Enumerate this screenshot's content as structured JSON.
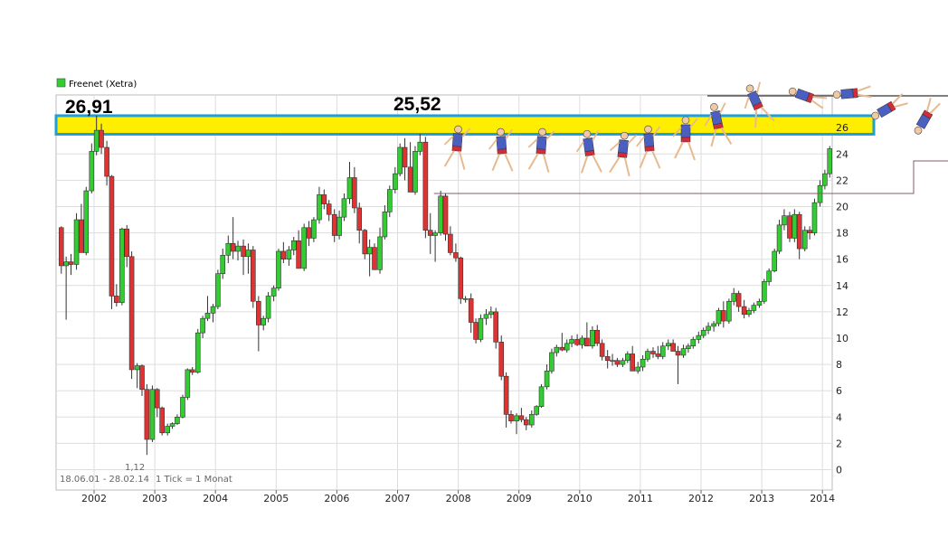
{
  "legend": {
    "label": "Freenet (Xetra)",
    "color": "#33cc33"
  },
  "footer": {
    "range": "18.06.01 - 28.02.14",
    "tick": "1 Tick = 1 Monat"
  },
  "annotations": {
    "high_2002": "26,91",
    "high_2007": "25,52",
    "low_2002": "1,12"
  },
  "colors": {
    "up": "#33cc33",
    "down": "#dd3333",
    "band_fill": "#ffee00",
    "band_border": "#1e9fd8",
    "grid": "#dddddd",
    "support_line": "#8a5a6a"
  },
  "chart_data": {
    "type": "candlestick",
    "title": "",
    "xlabel": "",
    "ylabel": "",
    "ylim": [
      -1,
      28
    ],
    "y_ticks": [
      0,
      2,
      4,
      6,
      8,
      10,
      12,
      14,
      16,
      18,
      20,
      22,
      24,
      26
    ],
    "x_ticks": [
      "2002",
      "2003",
      "2004",
      "2005",
      "2006",
      "2007",
      "2008",
      "2009",
      "2010",
      "2011",
      "2012",
      "2013",
      "2014"
    ],
    "series": [
      {
        "values": [
          [
            2001.46,
            18.4,
            18.5,
            14.9,
            15.5
          ],
          [
            2001.54,
            15.5,
            16.2,
            11.4,
            15.8
          ],
          [
            2001.62,
            15.8,
            16.4,
            14.8,
            15.6
          ],
          [
            2001.71,
            15.6,
            19.5,
            15.2,
            19.0
          ],
          [
            2001.79,
            19.0,
            20.2,
            17.1,
            16.5
          ],
          [
            2001.87,
            16.5,
            21.5,
            16.3,
            21.2
          ],
          [
            2001.96,
            21.2,
            24.8,
            21.0,
            24.2
          ],
          [
            2002.04,
            24.2,
            26.91,
            23.9,
            25.8
          ],
          [
            2002.12,
            25.8,
            26.3,
            24.0,
            24.5
          ],
          [
            2002.21,
            24.5,
            25.0,
            21.6,
            22.3
          ],
          [
            2002.29,
            22.3,
            22.4,
            12.2,
            13.2
          ],
          [
            2002.37,
            13.2,
            14.1,
            12.4,
            12.7
          ],
          [
            2002.46,
            12.7,
            18.4,
            12.5,
            18.3
          ],
          [
            2002.54,
            18.3,
            18.6,
            15.4,
            16.2
          ],
          [
            2002.62,
            16.2,
            16.6,
            6.9,
            7.6
          ],
          [
            2002.71,
            7.6,
            8.1,
            6.2,
            7.9
          ],
          [
            2002.79,
            7.9,
            8.0,
            5.6,
            6.1
          ],
          [
            2002.87,
            6.1,
            6.5,
            1.12,
            2.3
          ],
          [
            2002.96,
            2.3,
            6.4,
            2.1,
            6.1
          ],
          [
            2003.04,
            6.1,
            6.2,
            4.0,
            4.7
          ],
          [
            2003.12,
            4.7,
            4.8,
            2.6,
            2.8
          ],
          [
            2003.21,
            2.8,
            3.5,
            2.6,
            3.3
          ],
          [
            2003.29,
            3.3,
            3.6,
            3.1,
            3.5
          ],
          [
            2003.37,
            3.5,
            4.2,
            3.4,
            4.0
          ],
          [
            2003.46,
            4.0,
            5.7,
            3.9,
            5.5
          ],
          [
            2003.54,
            5.5,
            7.7,
            5.3,
            7.6
          ],
          [
            2003.62,
            7.6,
            7.8,
            7.2,
            7.4
          ],
          [
            2003.71,
            7.4,
            10.7,
            7.3,
            10.4
          ],
          [
            2003.79,
            10.4,
            11.7,
            10.0,
            11.5
          ],
          [
            2003.87,
            11.5,
            13.2,
            11.3,
            11.9
          ],
          [
            2003.96,
            11.9,
            12.6,
            11.2,
            12.4
          ],
          [
            2004.04,
            12.4,
            15.2,
            12.2,
            14.9
          ],
          [
            2004.12,
            14.9,
            16.8,
            14.5,
            16.3
          ],
          [
            2004.21,
            16.3,
            17.8,
            15.7,
            17.2
          ],
          [
            2004.29,
            17.2,
            19.2,
            16.0,
            16.6
          ],
          [
            2004.37,
            16.6,
            17.4,
            15.9,
            17.0
          ],
          [
            2004.46,
            17.0,
            17.5,
            14.8,
            16.2
          ],
          [
            2004.54,
            16.2,
            17.2,
            14.9,
            16.7
          ],
          [
            2004.62,
            16.7,
            17.0,
            12.3,
            12.8
          ],
          [
            2004.71,
            12.8,
            13.2,
            9.0,
            11.0
          ],
          [
            2004.79,
            11.0,
            11.7,
            10.6,
            11.5
          ],
          [
            2004.87,
            11.5,
            13.5,
            11.2,
            13.2
          ],
          [
            2004.96,
            13.2,
            14.0,
            12.8,
            13.8
          ],
          [
            2005.04,
            13.8,
            16.8,
            13.6,
            16.6
          ],
          [
            2005.12,
            16.6,
            17.3,
            15.7,
            16.0
          ],
          [
            2005.21,
            16.0,
            17.0,
            15.5,
            16.7
          ],
          [
            2005.29,
            16.7,
            17.7,
            16.3,
            17.4
          ],
          [
            2005.37,
            17.4,
            18.2,
            15.7,
            15.3
          ],
          [
            2005.46,
            15.3,
            18.7,
            15.1,
            18.4
          ],
          [
            2005.54,
            18.4,
            18.9,
            17.0,
            17.6
          ],
          [
            2005.62,
            17.6,
            19.2,
            17.3,
            19.0
          ],
          [
            2005.71,
            19.0,
            21.5,
            18.7,
            20.9
          ],
          [
            2005.79,
            20.9,
            21.3,
            19.8,
            20.2
          ],
          [
            2005.87,
            20.2,
            20.5,
            18.9,
            19.4
          ],
          [
            2005.96,
            19.4,
            19.8,
            17.3,
            17.8
          ],
          [
            2006.04,
            17.8,
            19.7,
            17.5,
            19.2
          ],
          [
            2006.12,
            19.2,
            21.0,
            18.9,
            20.6
          ],
          [
            2006.21,
            20.6,
            23.4,
            20.2,
            22.2
          ],
          [
            2006.29,
            22.2,
            23.0,
            19.5,
            19.9
          ],
          [
            2006.37,
            19.9,
            20.3,
            17.2,
            18.2
          ],
          [
            2006.46,
            18.2,
            18.3,
            16.0,
            16.4
          ],
          [
            2006.54,
            16.4,
            17.5,
            14.7,
            16.9
          ],
          [
            2006.62,
            16.9,
            17.2,
            15.3,
            15.2
          ],
          [
            2006.71,
            15.2,
            18.4,
            14.9,
            17.7
          ],
          [
            2006.79,
            17.7,
            20.1,
            17.5,
            19.6
          ],
          [
            2006.87,
            19.6,
            21.6,
            19.2,
            21.3
          ],
          [
            2006.96,
            21.3,
            23.0,
            21.0,
            22.5
          ],
          [
            2007.04,
            22.5,
            24.8,
            22.3,
            24.5
          ],
          [
            2007.12,
            24.5,
            25.2,
            22.0,
            23.0
          ],
          [
            2007.21,
            23.0,
            24.9,
            21.8,
            21.1
          ],
          [
            2007.29,
            21.1,
            24.6,
            20.9,
            24.2
          ],
          [
            2007.37,
            24.2,
            25.52,
            23.9,
            24.9
          ],
          [
            2007.46,
            24.9,
            25.3,
            17.6,
            18.2
          ],
          [
            2007.54,
            18.2,
            19.5,
            16.4,
            17.8
          ],
          [
            2007.62,
            17.8,
            18.2,
            15.8,
            18.0
          ],
          [
            2007.71,
            18.0,
            21.2,
            17.8,
            20.8
          ],
          [
            2007.79,
            20.8,
            21.0,
            17.4,
            17.9
          ],
          [
            2007.87,
            17.9,
            18.5,
            16.3,
            16.5
          ],
          [
            2007.96,
            16.5,
            17.2,
            15.8,
            16.1
          ],
          [
            2008.04,
            16.1,
            16.2,
            12.6,
            13.0
          ],
          [
            2008.12,
            13.0,
            13.2,
            12.7,
            13.0
          ],
          [
            2008.21,
            13.0,
            13.4,
            10.4,
            11.2
          ],
          [
            2008.29,
            11.2,
            11.5,
            9.6,
            9.9
          ],
          [
            2008.37,
            9.9,
            11.8,
            9.7,
            11.5
          ],
          [
            2008.46,
            11.5,
            12.2,
            11.0,
            11.8
          ],
          [
            2008.54,
            11.8,
            12.4,
            11.5,
            12.0
          ],
          [
            2008.62,
            12.0,
            12.3,
            9.2,
            9.7
          ],
          [
            2008.71,
            9.7,
            10.2,
            6.8,
            7.1
          ],
          [
            2008.79,
            7.1,
            7.4,
            3.2,
            4.2
          ],
          [
            2008.87,
            4.2,
            4.5,
            3.5,
            3.7
          ],
          [
            2008.96,
            3.7,
            4.3,
            2.7,
            4.1
          ],
          [
            2009.04,
            4.1,
            4.7,
            3.6,
            3.8
          ],
          [
            2009.12,
            3.8,
            4.0,
            3.0,
            3.4
          ],
          [
            2009.21,
            3.4,
            4.5,
            3.2,
            4.2
          ],
          [
            2009.29,
            4.2,
            4.9,
            4.1,
            4.8
          ],
          [
            2009.37,
            4.8,
            6.5,
            4.7,
            6.3
          ],
          [
            2009.46,
            6.3,
            8.0,
            6.1,
            7.5
          ],
          [
            2009.54,
            7.5,
            9.2,
            7.3,
            8.9
          ],
          [
            2009.62,
            8.9,
            9.5,
            8.6,
            9.3
          ],
          [
            2009.71,
            9.3,
            10.4,
            9.0,
            9.1
          ],
          [
            2009.79,
            9.1,
            9.9,
            8.9,
            9.6
          ],
          [
            2009.87,
            9.6,
            10.2,
            9.3,
            9.9
          ],
          [
            2009.96,
            9.9,
            10.3,
            9.4,
            9.5
          ],
          [
            2010.04,
            9.5,
            10.2,
            9.2,
            10.0
          ],
          [
            2010.12,
            10.0,
            11.2,
            9.8,
            9.4
          ],
          [
            2010.21,
            9.4,
            10.9,
            9.2,
            10.6
          ],
          [
            2010.29,
            10.6,
            11.0,
            9.4,
            9.6
          ],
          [
            2010.37,
            9.6,
            9.9,
            8.3,
            8.6
          ],
          [
            2010.46,
            8.6,
            9.1,
            7.7,
            8.3
          ],
          [
            2010.54,
            8.3,
            8.8,
            7.9,
            8.3
          ],
          [
            2010.62,
            8.3,
            8.5,
            7.8,
            8.0
          ],
          [
            2010.71,
            8.0,
            8.5,
            7.8,
            8.3
          ],
          [
            2010.79,
            8.3,
            9.0,
            8.1,
            8.8
          ],
          [
            2010.87,
            8.8,
            9.4,
            8.4,
            7.5
          ],
          [
            2010.96,
            7.5,
            8.2,
            7.3,
            7.8
          ],
          [
            2011.04,
            7.8,
            8.7,
            7.5,
            8.4
          ],
          [
            2011.12,
            8.4,
            9.2,
            8.2,
            9.0
          ],
          [
            2011.21,
            9.0,
            9.3,
            8.5,
            8.8
          ],
          [
            2011.29,
            8.8,
            9.4,
            8.4,
            8.6
          ],
          [
            2011.37,
            8.6,
            9.7,
            8.4,
            9.4
          ],
          [
            2011.46,
            9.4,
            9.9,
            9.1,
            9.6
          ],
          [
            2011.54,
            9.6,
            9.9,
            9.2,
            9.0
          ],
          [
            2011.62,
            9.0,
            9.4,
            6.5,
            8.7
          ],
          [
            2011.71,
            8.7,
            9.5,
            8.5,
            9.2
          ],
          [
            2011.79,
            9.2,
            9.6,
            8.9,
            9.4
          ],
          [
            2011.87,
            9.4,
            10.1,
            9.2,
            9.9
          ],
          [
            2011.96,
            9.9,
            10.5,
            9.6,
            10.2
          ],
          [
            2012.04,
            10.2,
            10.8,
            10.0,
            10.6
          ],
          [
            2012.12,
            10.6,
            11.2,
            10.3,
            10.9
          ],
          [
            2012.21,
            10.9,
            11.3,
            10.5,
            11.1
          ],
          [
            2012.29,
            11.1,
            12.3,
            10.9,
            12.1
          ],
          [
            2012.37,
            12.1,
            12.8,
            10.8,
            11.3
          ],
          [
            2012.46,
            11.3,
            13.0,
            11.1,
            12.8
          ],
          [
            2012.54,
            12.8,
            13.8,
            12.5,
            13.4
          ],
          [
            2012.62,
            13.4,
            13.6,
            12.0,
            12.4
          ],
          [
            2012.71,
            12.4,
            12.9,
            11.5,
            11.8
          ],
          [
            2012.79,
            11.8,
            12.3,
            11.6,
            12.1
          ],
          [
            2012.87,
            12.1,
            12.7,
            11.9,
            12.5
          ],
          [
            2012.96,
            12.5,
            13.0,
            12.3,
            12.8
          ],
          [
            2013.04,
            12.8,
            14.5,
            12.6,
            14.3
          ],
          [
            2013.12,
            14.3,
            15.3,
            14.0,
            15.1
          ],
          [
            2013.21,
            15.1,
            16.8,
            15.0,
            16.6
          ],
          [
            2013.29,
            16.6,
            19.0,
            16.4,
            18.6
          ],
          [
            2013.37,
            18.6,
            19.8,
            18.2,
            19.3
          ],
          [
            2013.46,
            19.3,
            19.6,
            17.3,
            17.6
          ],
          [
            2013.54,
            17.6,
            19.8,
            17.3,
            19.4
          ],
          [
            2013.62,
            19.4,
            19.6,
            16.0,
            16.8
          ],
          [
            2013.71,
            16.8,
            18.5,
            16.6,
            18.2
          ],
          [
            2013.79,
            18.2,
            18.5,
            17.5,
            18.0
          ],
          [
            2013.87,
            18.0,
            20.6,
            17.8,
            20.3
          ],
          [
            2013.96,
            20.3,
            22.0,
            20.0,
            21.6
          ],
          [
            2014.04,
            21.6,
            22.8,
            21.3,
            22.5
          ],
          [
            2014.12,
            22.5,
            24.6,
            22.2,
            24.4
          ]
        ]
      }
    ],
    "annotation_lines": [
      {
        "type": "band",
        "y_from": 25.5,
        "y_to": 26.91
      },
      {
        "type": "line",
        "y": 21.0,
        "x_from": 2007.6,
        "x_to": 2014.1
      }
    ]
  }
}
